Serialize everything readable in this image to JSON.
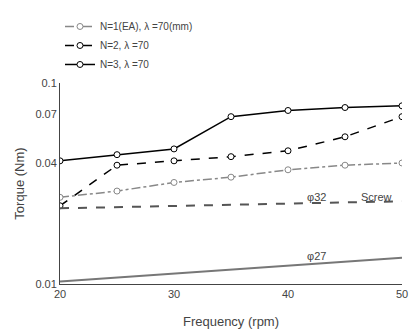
{
  "chart_data": {
    "type": "line",
    "xlabel": "Frequency (rpm)",
    "ylabel": "Torque (Nm)",
    "log": "y",
    "grid": false,
    "legend": "upper left",
    "xlim": [
      20,
      50
    ],
    "ylim": [
      0.01,
      0.1
    ],
    "xticks": [
      20,
      30,
      40,
      50
    ],
    "yticks": [
      0.01,
      0.04,
      0.07,
      0.1
    ],
    "series": [
      {
        "name": "N=3, λ =70",
        "color": "#000000",
        "line_style": "solid",
        "marker": "circle",
        "x": [
          20,
          25,
          30,
          35,
          40,
          45,
          50
        ],
        "values": [
          0.041,
          0.044,
          0.047,
          0.068,
          0.073,
          0.0755,
          0.077
        ]
      },
      {
        "name": "N=2, λ =70",
        "color": "#000000",
        "line_style": "dash",
        "marker": "circle",
        "x": [
          20,
          25,
          30,
          35,
          40,
          45,
          50
        ],
        "values": [
          0.0245,
          0.039,
          0.041,
          0.043,
          0.046,
          0.054,
          0.068
        ]
      },
      {
        "name": "N=1(EA), λ =70(mm)",
        "color": "#888888",
        "line_style": "dashdot",
        "marker": "circle",
        "x": [
          20,
          25,
          30,
          35,
          40,
          45,
          50
        ],
        "values": [
          0.027,
          0.029,
          0.032,
          0.034,
          0.037,
          0.039,
          0.04
        ]
      },
      {
        "color": "#555555",
        "line_style": "dash",
        "marker": "none",
        "x": [
          20,
          50
        ],
        "values": [
          0.0238,
          0.0258
        ]
      },
      {
        "color": "#777777",
        "line_style": "solid",
        "marker": "none",
        "x": [
          20,
          50
        ],
        "values": [
          0.0103,
          0.0135
        ]
      }
    ],
    "annotations": [
      {
        "text": "φ32",
        "x": 41.5,
        "y": 0.027
      },
      {
        "text": "φ27",
        "x": 41.5,
        "y": 0.0138
      },
      {
        "text": "Screw",
        "x": 46.2,
        "y": 0.027
      }
    ]
  }
}
